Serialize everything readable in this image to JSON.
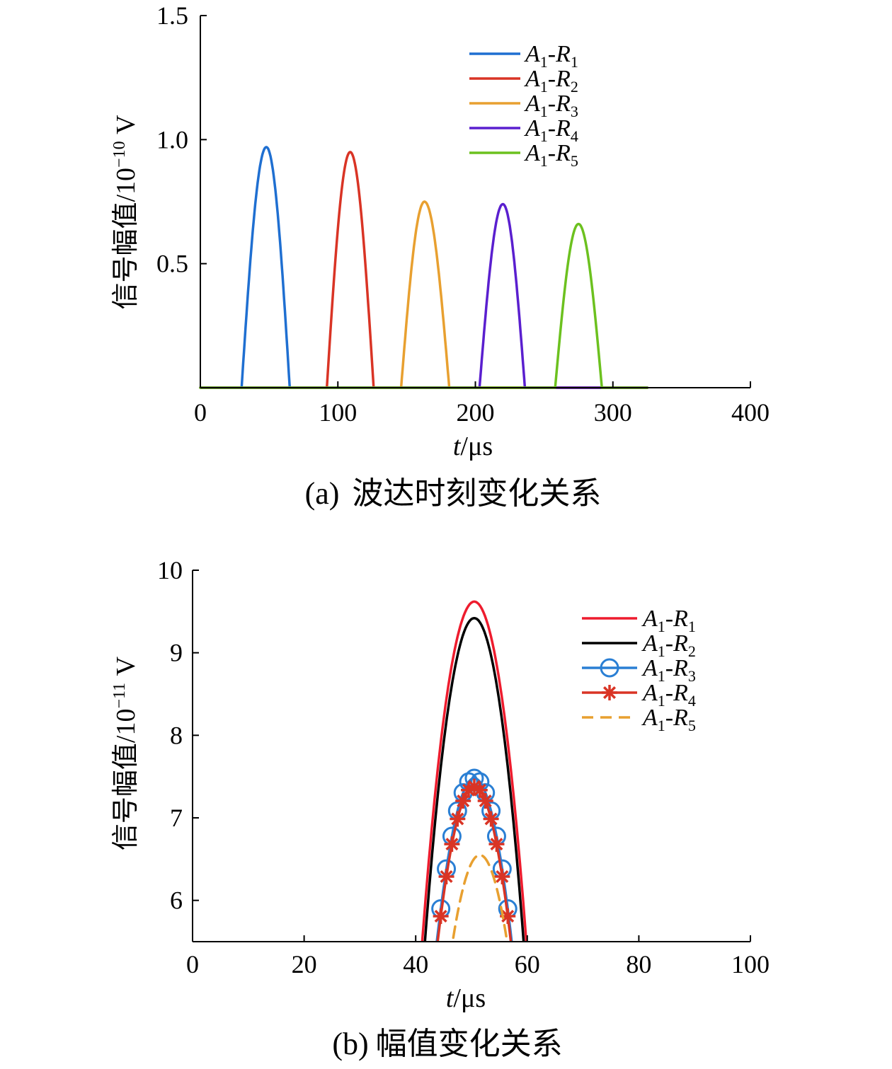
{
  "chart_data": [
    {
      "type": "line",
      "caption_label": "(a)",
      "caption_text": "波达时刻变化关系",
      "xlabel_italic": "t",
      "xlabel_unit": "/μs",
      "ylabel_text": "信号幅值/10",
      "ylabel_exp": "−10",
      "ylabel_unit": " V",
      "xlim": [
        0,
        400
      ],
      "ylim": [
        0,
        1.5
      ],
      "xticks": [
        0,
        100,
        200,
        300,
        400
      ],
      "xtick_labels": [
        "0",
        "100",
        "200",
        "300",
        "400"
      ],
      "yticks": [
        0.5,
        1.0,
        1.5
      ],
      "ytick_labels": [
        "0.5",
        "1.0",
        "1.5"
      ],
      "baseline_end": 325,
      "legend_position": "top-right",
      "series": [
        {
          "name": "A1-R1",
          "label_main": "A",
          "label_sub1": "1",
          "label_sep": "-R",
          "label_sub2": "1",
          "color": "#1f6fd1",
          "start": 30,
          "end": 65,
          "peak_t": 48,
          "peak": 0.97
        },
        {
          "name": "A1-R2",
          "label_main": "A",
          "label_sub1": "1",
          "label_sep": "-R",
          "label_sub2": "2",
          "color": "#d93425",
          "start": 92,
          "end": 126,
          "peak_t": 109,
          "peak": 0.95
        },
        {
          "name": "A1-R3",
          "label_main": "A",
          "label_sub1": "1",
          "label_sep": "-R",
          "label_sub2": "3",
          "color": "#e8a030",
          "start": 146,
          "end": 181,
          "peak_t": 163,
          "peak": 0.75
        },
        {
          "name": "A1-R4",
          "label_main": "A",
          "label_sub1": "1",
          "label_sep": "-R",
          "label_sub2": "4",
          "color": "#5a1fcf",
          "start": 203,
          "end": 236,
          "peak_t": 220,
          "peak": 0.74
        },
        {
          "name": "A1-R5",
          "label_main": "A",
          "label_sub1": "1",
          "label_sep": "-R",
          "label_sub2": "5",
          "color": "#6cc11f",
          "start": 258,
          "end": 292,
          "peak_t": 275,
          "peak": 0.66
        }
      ]
    },
    {
      "type": "line",
      "caption_label": "(b)",
      "caption_text": "幅值变化关系",
      "xlabel_italic": "t",
      "xlabel_unit": "/μs",
      "ylabel_text": "信号幅值/10",
      "ylabel_exp": "−11",
      "ylabel_unit": " V",
      "xlim": [
        0,
        100
      ],
      "ylim": [
        5.5,
        10
      ],
      "xticks": [
        0,
        20,
        40,
        60,
        80,
        100
      ],
      "xtick_labels": [
        "0",
        "20",
        "40",
        "60",
        "80",
        "100"
      ],
      "yticks": [
        6,
        7,
        8,
        9,
        10
      ],
      "ytick_labels": [
        "6",
        "7",
        "8",
        "9",
        "10"
      ],
      "legend_position": "top-right",
      "series": [
        {
          "name": "A1-R1",
          "label_main": "A",
          "label_sub1": "1",
          "label_sep": "-R",
          "label_sub2": "1",
          "color": "#ee1c2e",
          "style": "solid",
          "marker": "none",
          "peak_t": 50.5,
          "peak": 9.62,
          "half_width": 10.9
        },
        {
          "name": "A1-R2",
          "label_main": "A",
          "label_sub1": "1",
          "label_sep": "-R",
          "label_sub2": "2",
          "color": "#000000",
          "style": "solid",
          "marker": "none",
          "peak_t": 50.5,
          "peak": 9.42,
          "half_width": 10.4
        },
        {
          "name": "A1-R3",
          "label_main": "A",
          "label_sub1": "1",
          "label_sep": "-R",
          "label_sub2": "3",
          "color": "#2a7fd4",
          "style": "solid",
          "marker": "circle",
          "peak_t": 50.5,
          "peak": 7.48,
          "half_width": 8.9
        },
        {
          "name": "A1-R4",
          "label_main": "A",
          "label_sub1": "1",
          "label_sep": "-R",
          "label_sub2": "4",
          "color": "#d93425",
          "style": "solid",
          "marker": "star",
          "peak_t": 50.5,
          "peak": 7.38,
          "half_width": 8.8
        },
        {
          "name": "A1-R5",
          "label_main": "A",
          "label_sub1": "1",
          "label_sep": "-R",
          "label_sub2": "5",
          "color": "#e8a030",
          "style": "dashed",
          "marker": "none",
          "peak_t": 51.5,
          "peak": 6.55,
          "half_width": 7.6
        }
      ]
    }
  ]
}
